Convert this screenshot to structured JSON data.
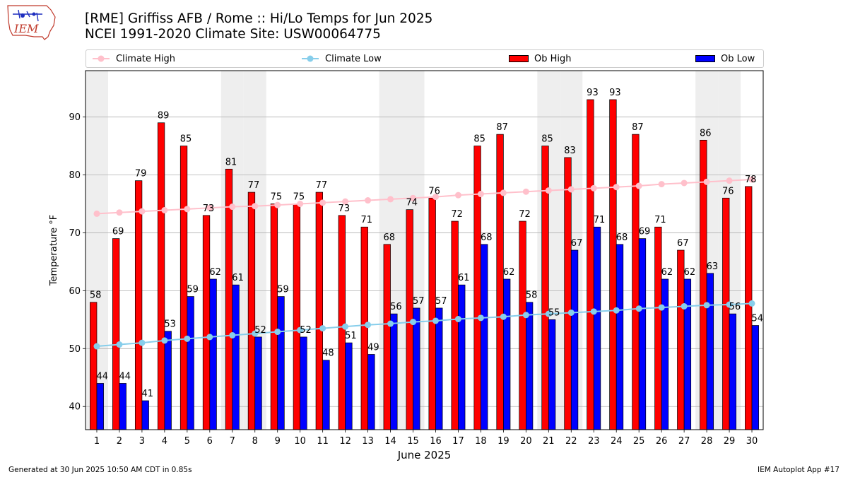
{
  "logo": {
    "text": "IEM"
  },
  "header": {
    "title": "[RME] Griffiss AFB / Rome :: Hi/Lo Temps for Jun 2025",
    "subtitle": "NCEI 1991-2020 Climate Site: USW00064775"
  },
  "legend": {
    "climate_high": "Climate High",
    "climate_low": "Climate Low",
    "ob_high": "Ob High",
    "ob_low": "Ob Low"
  },
  "footer": {
    "left": "Generated at 30 Jun 2025 10:50 AM CDT in 0.85s",
    "right": "IEM Autoplot App #17"
  },
  "chart_data": {
    "type": "bar",
    "xlabel": "June 2025",
    "ylabel": "Temperature °F",
    "ylim": [
      36,
      98
    ],
    "yticks": [
      40,
      50,
      60,
      70,
      80,
      90
    ],
    "grid": "horizontal",
    "legend_position": "top",
    "weekend_shading_days": [
      1,
      7,
      8,
      14,
      15,
      21,
      22,
      28,
      29
    ],
    "categories": [
      1,
      2,
      3,
      4,
      5,
      6,
      7,
      8,
      9,
      10,
      11,
      12,
      13,
      14,
      15,
      16,
      17,
      18,
      19,
      20,
      21,
      22,
      23,
      24,
      25,
      26,
      27,
      28,
      29,
      30
    ],
    "series": [
      {
        "name": "Ob High",
        "kind": "bar",
        "color": "#ff0000",
        "values": [
          58,
          69,
          79,
          89,
          85,
          73,
          81,
          77,
          75,
          75,
          77,
          73,
          71,
          68,
          74,
          76,
          72,
          85,
          87,
          72,
          85,
          83,
          93,
          93,
          87,
          71,
          67,
          86,
          76,
          78
        ]
      },
      {
        "name": "Ob Low",
        "kind": "bar",
        "color": "#0000ff",
        "values": [
          44,
          44,
          41,
          53,
          59,
          62,
          61,
          52,
          59,
          52,
          48,
          51,
          49,
          56,
          57,
          57,
          61,
          68,
          62,
          58,
          55,
          67,
          71,
          68,
          69,
          62,
          62,
          63,
          56,
          54
        ]
      },
      {
        "name": "Climate High",
        "kind": "line",
        "color": "#ffc0cb",
        "values": [
          73.3,
          73.5,
          73.7,
          73.9,
          74.1,
          74.3,
          74.5,
          74.6,
          74.8,
          75.0,
          75.2,
          75.4,
          75.6,
          75.8,
          76.0,
          76.2,
          76.5,
          76.7,
          76.9,
          77.1,
          77.3,
          77.5,
          77.7,
          77.9,
          78.1,
          78.4,
          78.6,
          78.8,
          79.0,
          79.2
        ]
      },
      {
        "name": "Climate Low",
        "kind": "line",
        "color": "#87ceeb",
        "values": [
          50.4,
          50.7,
          51.0,
          51.4,
          51.7,
          52.0,
          52.3,
          52.6,
          52.9,
          53.2,
          53.5,
          53.8,
          54.1,
          54.3,
          54.6,
          54.8,
          55.1,
          55.3,
          55.5,
          55.8,
          56.0,
          56.2,
          56.4,
          56.6,
          56.9,
          57.1,
          57.3,
          57.5,
          57.6,
          57.8
        ]
      }
    ]
  }
}
